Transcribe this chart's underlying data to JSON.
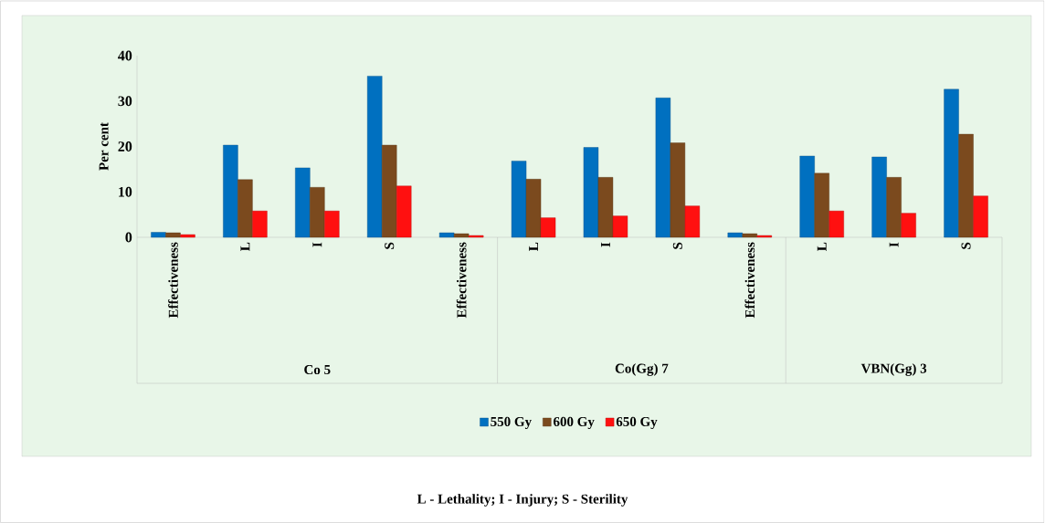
{
  "chart_data": {
    "type": "bar",
    "ylabel": "Per cent",
    "categories": [
      "Effectiveness",
      "L",
      "I",
      "S",
      "Effectiveness",
      "L",
      "I",
      "S",
      "Effectiveness",
      "L",
      "I",
      "S"
    ],
    "series": [
      {
        "name": "550 Gy",
        "color": "#0070c0",
        "values": [
          1.1,
          20.3,
          15.3,
          35.5,
          1,
          16.8,
          19.8,
          30.7,
          1,
          17.9,
          17.7,
          32.6
        ]
      },
      {
        "name": "600 Gy",
        "color": "#7b4a1e",
        "values": [
          1,
          12.7,
          11,
          20.3,
          0.8,
          12.8,
          13.2,
          20.8,
          0.8,
          14.1,
          13.2,
          22.7
        ]
      },
      {
        "name": "650 Gy",
        "color": "#ff1010",
        "values": [
          0.6,
          5.8,
          5.8,
          11.3,
          0.4,
          4.3,
          4.7,
          6.9,
          0.4,
          5.8,
          5.3,
          9.1
        ]
      }
    ],
    "ylim": [
      0,
      40
    ],
    "yticks": [
      0,
      10,
      20,
      30,
      40
    ],
    "grid": false,
    "legend": "bottom",
    "annotations": [
      "Co 5",
      "Co(Gg) 7",
      "VBN(Gg) 3",
      "L - Lethality; I - Injury; S - Sterility"
    ]
  }
}
